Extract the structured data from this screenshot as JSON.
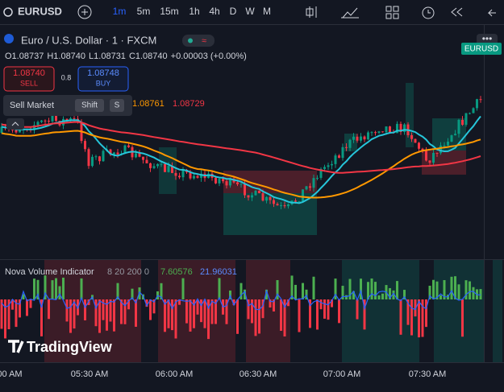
{
  "toolbar": {
    "symbol": "EURUSD",
    "intervals": [
      "1m",
      "5m",
      "15m",
      "1h",
      "4h",
      "D",
      "W",
      "M"
    ]
  },
  "legend": {
    "title": "Euro / U.S. Dollar · 1 · FXCM",
    "ohlc": [
      "O1.08737",
      "H1.08740",
      "L1.08731",
      "C1.08740",
      "+0.00003 (+0.00%)"
    ],
    "sell": {
      "price": "1.08740",
      "label": "SELL"
    },
    "spread": "0.8",
    "buy": {
      "price": "1.08748",
      "label": "BUY"
    },
    "ma_values": [
      "1.08761",
      "1.08729"
    ]
  },
  "tooltip": {
    "label": "Sell Market",
    "keys": [
      "Shift",
      "S"
    ]
  },
  "badge": "EURUSD",
  "indicator": {
    "name": "Nova Volume Indicator",
    "params": "8 20 200 0",
    "values": [
      "7.60576",
      "21.96031"
    ]
  },
  "logo": "TradingView",
  "time_axis": [
    "00 AM",
    "05:30 AM",
    "06:00 AM",
    "06:30 AM",
    "07:00 AM",
    "07:30 AM"
  ]
}
